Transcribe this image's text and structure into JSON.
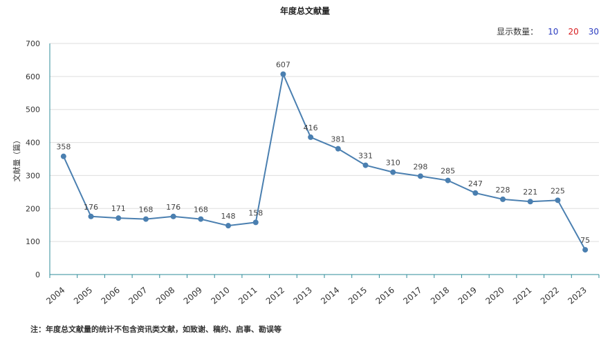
{
  "title": "年度总文献量",
  "count_switch": {
    "label": "显示数量：",
    "options": [
      "10",
      "20",
      "30"
    ]
  },
  "footnote": "注：年度总文献量的统计不包含资讯类文献，如致谢、稿约、启事、勘误等",
  "colors": {
    "line": "#4a7fb0",
    "axis": "#2e8b99",
    "grid": "#dddddd"
  },
  "chart_data": {
    "type": "line",
    "title": "年度总文献量",
    "xlabel": "",
    "ylabel": "文献量（篇）",
    "ylim": [
      0,
      700
    ],
    "yticks": [
      0,
      100,
      200,
      300,
      400,
      500,
      600,
      700
    ],
    "grid": true,
    "categories": [
      "2004",
      "2005",
      "2006",
      "2007",
      "2008",
      "2009",
      "2010",
      "2011",
      "2012",
      "2013",
      "2014",
      "2015",
      "2016",
      "2017",
      "2018",
      "2019",
      "2020",
      "2021",
      "2022",
      "2023"
    ],
    "series": [
      {
        "values": [
          358,
          176,
          171,
          168,
          176,
          168,
          148,
          158,
          607,
          416,
          381,
          331,
          310,
          298,
          285,
          247,
          228,
          221,
          225,
          75
        ]
      }
    ]
  }
}
